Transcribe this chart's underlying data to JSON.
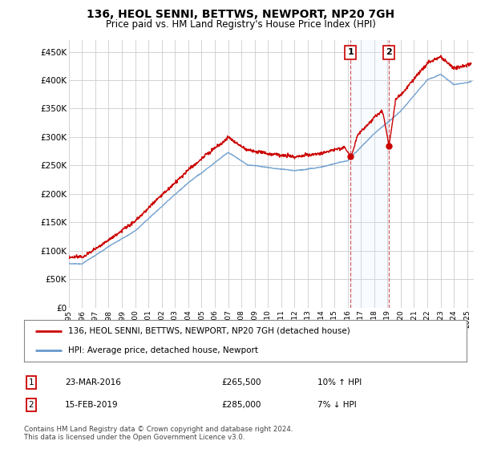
{
  "title": "136, HEOL SENNI, BETTWS, NEWPORT, NP20 7GH",
  "subtitle": "Price paid vs. HM Land Registry's House Price Index (HPI)",
  "ylabel_ticks": [
    "£0",
    "£50K",
    "£100K",
    "£150K",
    "£200K",
    "£250K",
    "£300K",
    "£350K",
    "£400K",
    "£450K"
  ],
  "ylim": [
    0,
    470000
  ],
  "xlim_start": 1995.0,
  "xlim_end": 2025.5,
  "legend_line1": "136, HEOL SENNI, BETTWS, NEWPORT, NP20 7GH (detached house)",
  "legend_line2": "HPI: Average price, detached house, Newport",
  "annotation1_label": "1",
  "annotation1_date": "23-MAR-2016",
  "annotation1_price": "£265,500",
  "annotation1_hpi": "10% ↑ HPI",
  "annotation2_label": "2",
  "annotation2_date": "15-FEB-2019",
  "annotation2_price": "£285,000",
  "annotation2_hpi": "7% ↓ HPI",
  "footer": "Contains HM Land Registry data © Crown copyright and database right 2024.\nThis data is licensed under the Open Government Licence v3.0.",
  "sale1_x": 2016.22,
  "sale1_y": 265500,
  "sale2_x": 2019.12,
  "sale2_y": 285000,
  "red_color": "#cc0000",
  "blue_color": "#6699cc",
  "blue_fill_color": "#ddeeff",
  "annotation_box_color": "#cc0000",
  "vline_color": "#cc4444",
  "grid_color": "#cccccc",
  "background_plot": "#ffffff",
  "background_fig": "#ffffff"
}
